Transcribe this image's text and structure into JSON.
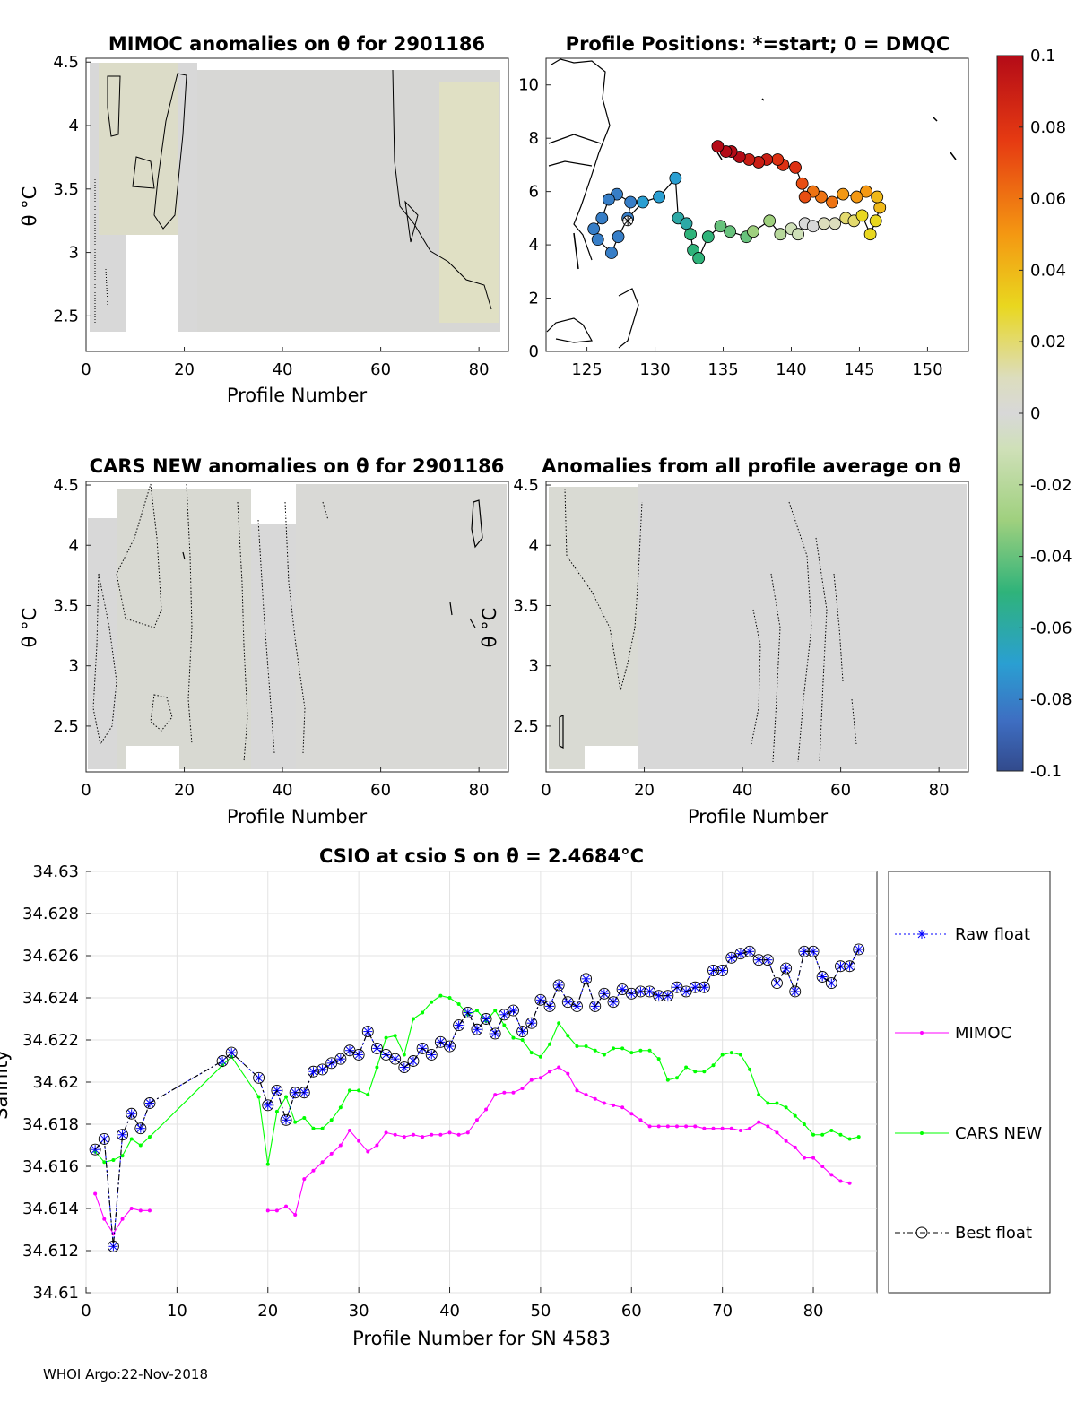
{
  "footer": "WHOI Argo:22-Nov-2018",
  "colorbar": {
    "ticks": [
      "0.1",
      "0.08",
      "0.06",
      "0.04",
      "0.02",
      "0",
      "-0.02",
      "-0.04",
      "-0.06",
      "-0.08",
      "-0.1"
    ],
    "range": [
      -0.1,
      0.1
    ]
  },
  "chart_data": [
    {
      "id": "mimoc",
      "type": "heatmap",
      "title": "MIMOC anomalies on θ  for 2901186",
      "xlabel": "Profile Number",
      "ylabel": "θ °C",
      "xticks": [
        "0",
        "20",
        "40",
        "60",
        "80"
      ],
      "yticks": [
        "4.5",
        "4",
        "3.5",
        "3",
        "2.5"
      ],
      "xlim": [
        0,
        86
      ],
      "ylim": [
        2.22,
        4.53
      ]
    },
    {
      "id": "positions",
      "type": "scatter",
      "title": "Profile Positions: *=start; 0 = DMQC",
      "xticks": [
        "125",
        "130",
        "135",
        "140",
        "145",
        "150"
      ],
      "yticks": [
        "10",
        "8",
        "6",
        "4",
        "2",
        "0"
      ],
      "xlim": [
        122,
        153
      ],
      "ylim": [
        0,
        11
      ],
      "lon": [
        128.0,
        128.2,
        127.2,
        126.6,
        126.1,
        125.5,
        125.8,
        126.8,
        127.3,
        128.0,
        129.1,
        130.3,
        131.5,
        131.7,
        132.3,
        132.6,
        132.8,
        133.2,
        133.9,
        134.8,
        135.5,
        136.7,
        137.2,
        138.4,
        139.2,
        140.0,
        140.5,
        141.0,
        141.6,
        142.4,
        143.2,
        144.0,
        144.6,
        145.2,
        145.8,
        146.2,
        146.5,
        146.3,
        145.5,
        144.8,
        143.8,
        143.0,
        142.2,
        141.6,
        141.0,
        140.8,
        140.3,
        139.4,
        139.0,
        138.2,
        137.6,
        136.9,
        136.2,
        135.6,
        135.2,
        134.6
      ],
      "lat": [
        4.9,
        5.6,
        5.9,
        5.7,
        5.0,
        4.6,
        4.2,
        3.7,
        4.3,
        5.0,
        5.6,
        5.8,
        6.5,
        5.0,
        4.8,
        4.4,
        3.8,
        3.5,
        4.3,
        4.7,
        4.5,
        4.3,
        4.5,
        4.9,
        4.4,
        4.6,
        4.4,
        4.8,
        4.7,
        4.8,
        4.8,
        5.0,
        4.9,
        5.1,
        4.4,
        4.9,
        5.4,
        5.8,
        6.0,
        5.8,
        5.9,
        5.6,
        5.8,
        6.0,
        5.8,
        6.3,
        6.9,
        7.0,
        7.2,
        7.2,
        7.1,
        7.2,
        7.3,
        7.5,
        7.5,
        7.7
      ],
      "values": [
        -0.08,
        -0.08,
        -0.08,
        -0.08,
        -0.08,
        -0.08,
        -0.08,
        -0.08,
        -0.08,
        -0.08,
        -0.07,
        -0.07,
        -0.07,
        -0.06,
        -0.06,
        -0.05,
        -0.05,
        -0.05,
        -0.05,
        -0.04,
        -0.04,
        -0.04,
        -0.03,
        -0.03,
        -0.02,
        -0.01,
        -0.01,
        0,
        0,
        0.01,
        0.01,
        0.02,
        0.02,
        0.03,
        0.03,
        0.03,
        0.04,
        0.04,
        0.05,
        0.05,
        0.05,
        0.06,
        0.06,
        0.06,
        0.07,
        0.07,
        0.08,
        0.08,
        0.08,
        0.09,
        0.09,
        0.09,
        0.1,
        0.1,
        0.1,
        0.1
      ]
    },
    {
      "id": "cars",
      "type": "heatmap",
      "title": "CARS NEW anomalies on θ for 2901186",
      "xlabel": "Profile Number",
      "ylabel": "θ °C",
      "xticks": [
        "0",
        "20",
        "40",
        "60",
        "80"
      ],
      "yticks": [
        "4.5",
        "4",
        "3.5",
        "3",
        "2.5"
      ],
      "xlim": [
        0,
        86
      ],
      "ylim": [
        2.12,
        4.53
      ]
    },
    {
      "id": "allavg",
      "type": "heatmap",
      "title": "Anomalies from all profile average on θ",
      "xlabel": "Profile Number",
      "ylabel": "θ °C",
      "xticks": [
        "0",
        "20",
        "40",
        "60",
        "80"
      ],
      "yticks": [
        "4.5",
        "4",
        "3.5",
        "3",
        "2.5"
      ],
      "xlim": [
        0,
        86
      ],
      "ylim": [
        2.12,
        4.53
      ]
    },
    {
      "id": "csio",
      "type": "line",
      "title": "CSIO at csio S on θ = 2.4684",
      "title_unit": "°C",
      "xlabel": "Profile Number for SN 4583",
      "ylabel": "Salinity",
      "xlim": [
        0,
        87
      ],
      "ylim": [
        34.61,
        34.63
      ],
      "xticks": [
        "0",
        "10",
        "20",
        "30",
        "40",
        "50",
        "60",
        "70",
        "80"
      ],
      "yticks": [
        "34.63",
        "34.628",
        "34.626",
        "34.624",
        "34.622",
        "34.62",
        "34.618",
        "34.616",
        "34.614",
        "34.612",
        "34.61"
      ],
      "x": [
        1,
        2,
        3,
        4,
        5,
        6,
        7,
        15,
        16,
        19,
        20,
        21,
        22,
        23,
        24,
        25,
        26,
        27,
        28,
        29,
        30,
        31,
        32,
        33,
        34,
        35,
        36,
        37,
        38,
        39,
        40,
        41,
        42,
        43,
        44,
        45,
        46,
        47,
        48,
        49,
        50,
        51,
        52,
        53,
        54,
        55,
        56,
        57,
        58,
        59,
        60,
        61,
        62,
        63,
        64,
        65,
        66,
        67,
        68,
        69,
        70,
        71,
        72,
        73,
        74,
        75,
        76,
        77,
        78,
        79,
        80,
        81,
        82,
        83,
        84,
        85
      ],
      "series": [
        {
          "name": "Raw float",
          "color": "#0000ff",
          "values": [
            34.6168,
            34.6173,
            34.6122,
            34.6175,
            34.6185,
            34.6178,
            34.619,
            34.621,
            34.6214,
            34.6202,
            34.6189,
            34.6196,
            34.6182,
            34.6195,
            34.6195,
            34.6205,
            34.6206,
            34.6209,
            34.6211,
            34.6215,
            34.6213,
            34.6224,
            34.6216,
            34.6213,
            34.6211,
            34.6207,
            34.621,
            34.6216,
            34.6213,
            34.6219,
            34.6217,
            34.6227,
            34.6233,
            34.6225,
            34.623,
            34.6223,
            34.6232,
            34.6234,
            34.6224,
            34.6228,
            34.6239,
            34.6236,
            34.6246,
            34.6238,
            34.6236,
            34.6249,
            34.6236,
            34.6242,
            34.6238,
            34.6244,
            34.6242,
            34.6243,
            34.6243,
            34.6241,
            34.6241,
            34.6245,
            34.6243,
            34.6245,
            34.6245,
            34.6253,
            34.6253,
            34.6259,
            34.6261,
            34.6262,
            34.6258,
            34.6258,
            34.6247,
            34.6254,
            34.6243,
            34.6262,
            34.6262,
            34.625,
            34.6247,
            34.6255,
            34.6255,
            34.6263
          ]
        },
        {
          "name": "MIMOC",
          "color": "#ff00ff",
          "values": [
            34.6147,
            34.6135,
            34.6128,
            34.6135,
            34.614,
            34.6139,
            34.6139,
            null,
            null,
            null,
            34.6139,
            34.6139,
            34.6141,
            34.6137,
            34.6154,
            34.6158,
            34.6162,
            34.6166,
            34.617,
            34.6177,
            34.6172,
            34.6167,
            34.617,
            34.6176,
            34.6175,
            34.6174,
            34.6175,
            34.6174,
            34.6175,
            34.6175,
            34.6176,
            34.6175,
            34.6176,
            34.6182,
            34.6187,
            34.6194,
            34.6195,
            34.6195,
            34.6197,
            34.6201,
            34.6202,
            34.6205,
            34.6207,
            34.6204,
            34.6196,
            34.6194,
            34.6192,
            34.619,
            34.6189,
            34.6188,
            34.6185,
            34.6182,
            34.6179,
            34.6179,
            34.6179,
            34.6179,
            34.6179,
            34.6179,
            34.6178,
            34.6178,
            34.6178,
            34.6178,
            34.6177,
            34.6178,
            34.6181,
            34.6179,
            34.6176,
            34.6172,
            34.6169,
            34.6164,
            34.6164,
            34.616,
            34.6156,
            34.6153,
            34.6152,
            null
          ]
        },
        {
          "name": "CARS NEW",
          "color": "#00ff00",
          "values": [
            34.6167,
            34.6162,
            34.6163,
            34.6165,
            34.6173,
            34.617,
            34.6174,
            34.6208,
            34.6212,
            34.6193,
            34.6161,
            34.6186,
            34.6193,
            34.6181,
            34.6183,
            34.6178,
            34.6178,
            34.6182,
            34.6188,
            34.6196,
            34.6196,
            34.6194,
            34.6207,
            34.6221,
            34.6222,
            34.6213,
            34.623,
            34.6233,
            34.6238,
            34.6241,
            34.624,
            34.6237,
            34.6232,
            34.6234,
            34.6229,
            34.6234,
            34.6227,
            34.6221,
            34.622,
            34.6214,
            34.6212,
            34.6218,
            34.6228,
            34.6222,
            34.6217,
            34.6217,
            34.6215,
            34.6213,
            34.6216,
            34.6216,
            34.6214,
            34.6215,
            34.6215,
            34.6211,
            34.6201,
            34.6202,
            34.6207,
            34.6205,
            34.6205,
            34.6208,
            34.6213,
            34.6214,
            34.6213,
            34.6206,
            34.6194,
            34.619,
            34.619,
            34.6188,
            34.6184,
            34.618,
            34.6175,
            34.6175,
            34.6177,
            34.6175,
            34.6173,
            34.6174
          ]
        },
        {
          "name": "Best float",
          "color": "#000000",
          "values": [
            34.6168,
            34.6173,
            34.6122,
            34.6175,
            34.6185,
            34.6178,
            34.619,
            34.621,
            34.6214,
            34.6202,
            34.6189,
            34.6196,
            34.6182,
            34.6195,
            34.6195,
            34.6205,
            34.6206,
            34.6209,
            34.6211,
            34.6215,
            34.6213,
            34.6224,
            34.6216,
            34.6213,
            34.6211,
            34.6207,
            34.621,
            34.6216,
            34.6213,
            34.6219,
            34.6217,
            34.6227,
            34.6233,
            34.6225,
            34.623,
            34.6223,
            34.6232,
            34.6234,
            34.6224,
            34.6228,
            34.6239,
            34.6236,
            34.6246,
            34.6238,
            34.6236,
            34.6249,
            34.6236,
            34.6242,
            34.6238,
            34.6244,
            34.6242,
            34.6243,
            34.6243,
            34.6241,
            34.6241,
            34.6245,
            34.6243,
            34.6245,
            34.6245,
            34.6253,
            34.6253,
            34.6259,
            34.6261,
            34.6262,
            34.6258,
            34.6258,
            34.6247,
            34.6254,
            34.6243,
            34.6262,
            34.6262,
            34.625,
            34.6247,
            34.6255,
            34.6255,
            34.6263
          ]
        }
      ]
    }
  ]
}
